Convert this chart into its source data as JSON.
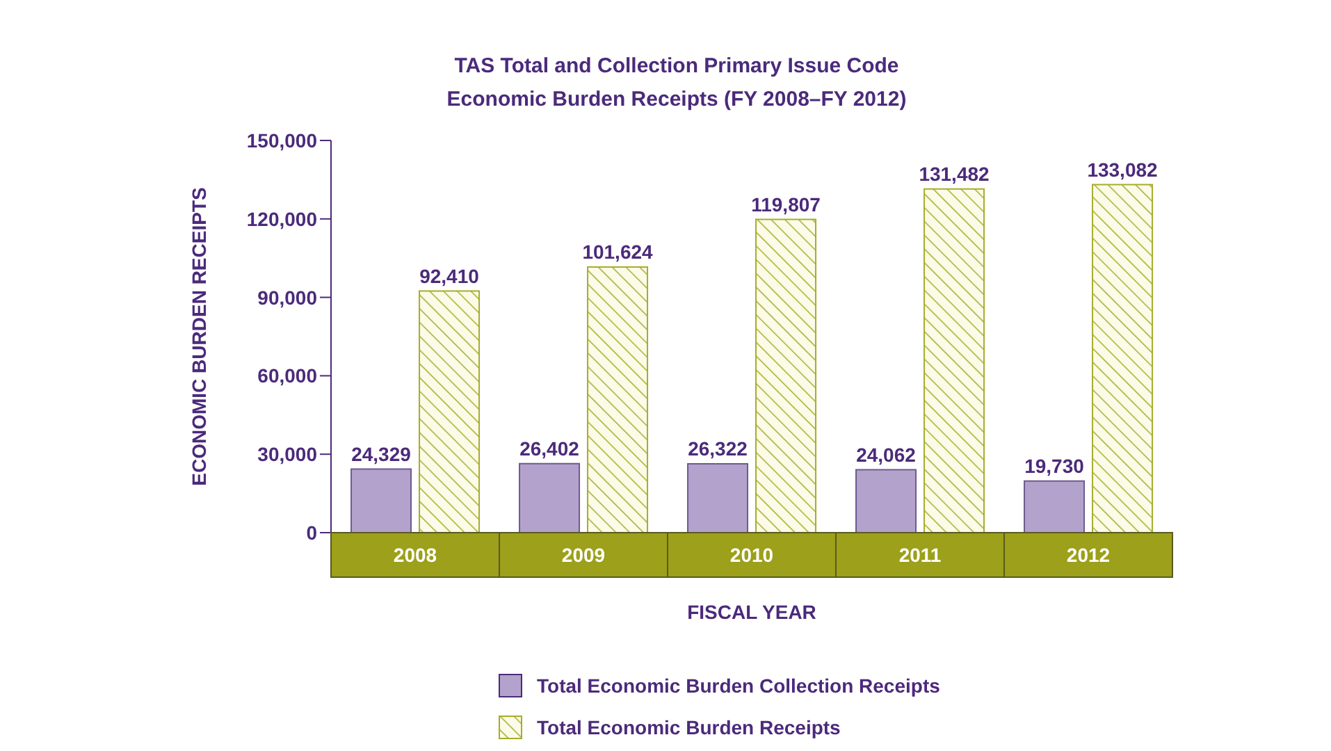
{
  "chart_data": {
    "type": "bar",
    "title": "TAS Total and Collection Primary Issue Code\nEconomic Burden Receipts (FY 2008–FY 2012)",
    "xlabel": "FISCAL YEAR",
    "ylabel": "ECONOMIC BURDEN RECEIPTS",
    "categories": [
      "2008",
      "2009",
      "2010",
      "2011",
      "2012"
    ],
    "series": [
      {
        "name": "Total Economic Burden Collection Receipts",
        "color": "#b3a2cc",
        "values": [
          24329,
          26402,
          26322,
          24062,
          19730
        ],
        "value_labels": [
          "24,329",
          "26,402",
          "26,322",
          "24,062",
          "19,730"
        ]
      },
      {
        "name": "Total Economic Burden Receipts",
        "color": "#a6ad2c",
        "values": [
          92410,
          101624,
          119807,
          131482,
          133082
        ],
        "value_labels": [
          "92,410",
          "101,624",
          "119,807",
          "131,482",
          "133,082"
        ]
      }
    ],
    "ylim": [
      0,
      150000
    ],
    "yticks": [
      0,
      {
        "value": 30000,
        "label": "30,000"
      },
      {
        "value": 60000,
        "label": "60,000"
      },
      {
        "value": 90000,
        "label": "90,000"
      },
      {
        "value": 120000,
        "label": "120,000"
      },
      {
        "value": 150000,
        "label": "150,000"
      }
    ],
    "legend": "bottom left",
    "grid": false
  }
}
